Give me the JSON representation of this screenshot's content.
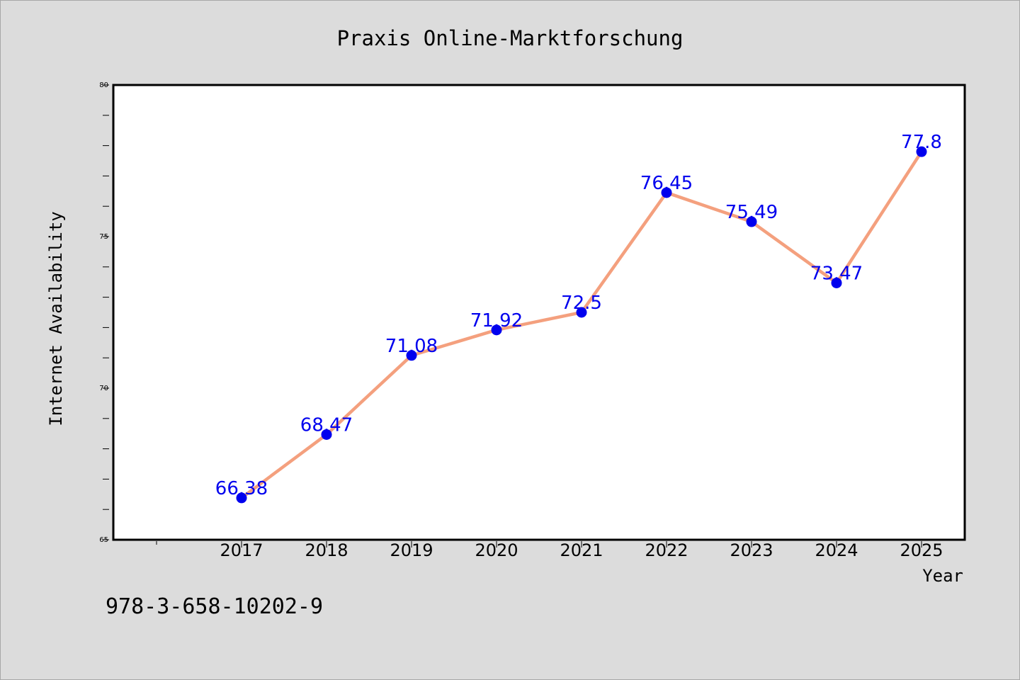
{
  "chart_data": {
    "type": "line",
    "title": "Praxis Online-Marktforschung",
    "xlabel": "Year",
    "ylabel": "Internet Availability",
    "categories": [
      "2017",
      "2018",
      "2019",
      "2020",
      "2021",
      "2022",
      "2023",
      "2024",
      "2025"
    ],
    "series": [
      {
        "values": [
          66.38,
          68.47,
          71.08,
          71.92,
          72.5,
          76.45,
          75.49,
          73.47,
          77.8
        ],
        "labels": [
          "66.38",
          "68.47",
          "71.08",
          "71.92",
          "72.5",
          "76.45",
          "75.49",
          "73.47",
          "77.8"
        ],
        "line_color": "#f4a07e",
        "marker_color": "#0000ee",
        "label_color": "#0000ee"
      }
    ],
    "ylim": [
      65,
      80
    ],
    "yticks": [
      "65",
      "70",
      "75",
      "80"
    ],
    "grid": false,
    "legend": "none"
  },
  "footer_text": "978-3-658-10202-9",
  "colors": {
    "background": "#dcdcdc",
    "plot_area": "#ffffff",
    "axis": "#000000",
    "text": "#000000"
  }
}
